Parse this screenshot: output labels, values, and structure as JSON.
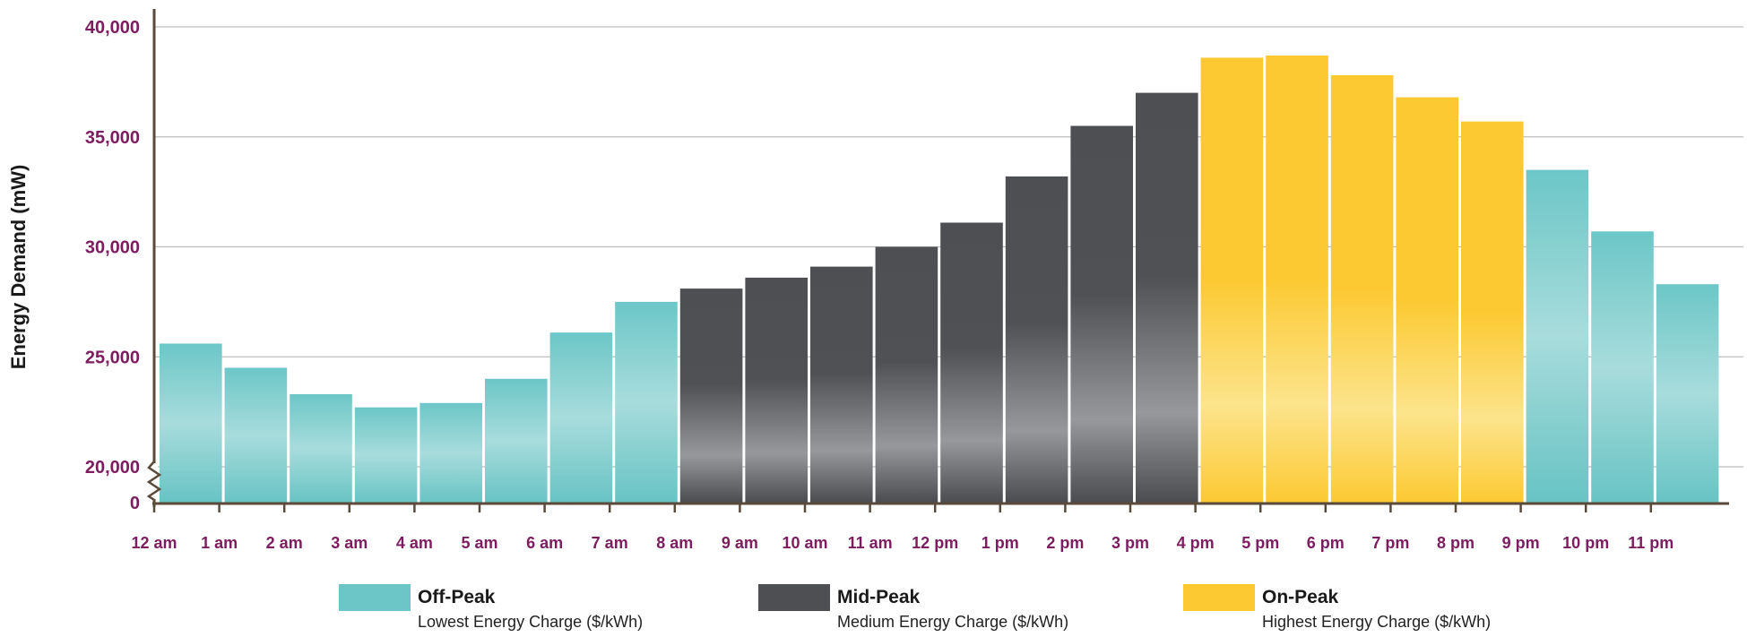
{
  "chart_data": {
    "type": "bar",
    "ylabel": "Energy Demand (mW)",
    "xlabel": "",
    "y_ticks": [
      "40,000",
      "35,000",
      "30,000",
      "25,000",
      "20,000",
      "0"
    ],
    "y_tick_values": [
      40000,
      35000,
      30000,
      25000,
      20000,
      0
    ],
    "axis_break": "between 0 and 20,000",
    "ylim": [
      18500,
      40000
    ],
    "grid": true,
    "categories": [
      "12 am",
      "1 am",
      "2 am",
      "3 am",
      "4 am",
      "5 am",
      "6 am",
      "7 am",
      "8 am",
      "9 am",
      "10 am",
      "11 am",
      "12 pm",
      "1 pm",
      "2 pm",
      "3 pm",
      "4 pm",
      "5 pm",
      "6 pm",
      "7 pm",
      "8 pm",
      "9 pm",
      "10 pm",
      "11 pm"
    ],
    "values": [
      25600,
      24500,
      23300,
      22700,
      22900,
      24000,
      26100,
      27500,
      28100,
      28600,
      29100,
      30000,
      31100,
      33200,
      35500,
      37000,
      38600,
      38700,
      37800,
      36800,
      35700,
      33500,
      30700,
      28300
    ],
    "periods": [
      "off",
      "off",
      "off",
      "off",
      "off",
      "off",
      "off",
      "off",
      "mid",
      "mid",
      "mid",
      "mid",
      "mid",
      "mid",
      "mid",
      "mid",
      "on",
      "on",
      "on",
      "on",
      "on",
      "off",
      "off",
      "off"
    ],
    "legend_position": "bottom",
    "legend": [
      {
        "key": "off",
        "title": "Off-Peak",
        "subtitle": "Lowest Energy Charge ($/kWh)",
        "color": "#6cc6c7"
      },
      {
        "key": "mid",
        "title": "Mid-Peak",
        "subtitle": "Medium Energy Charge ($/kWh)",
        "color": "#4d4f53"
      },
      {
        "key": "on",
        "title": "On-Peak",
        "subtitle": "Highest Energy Charge ($/kWh)",
        "color": "#fcc932"
      }
    ]
  },
  "colors": {
    "tick_text": "#7d1d5f",
    "axis": "#5a4a3a",
    "grid": "#bdbdbd"
  }
}
